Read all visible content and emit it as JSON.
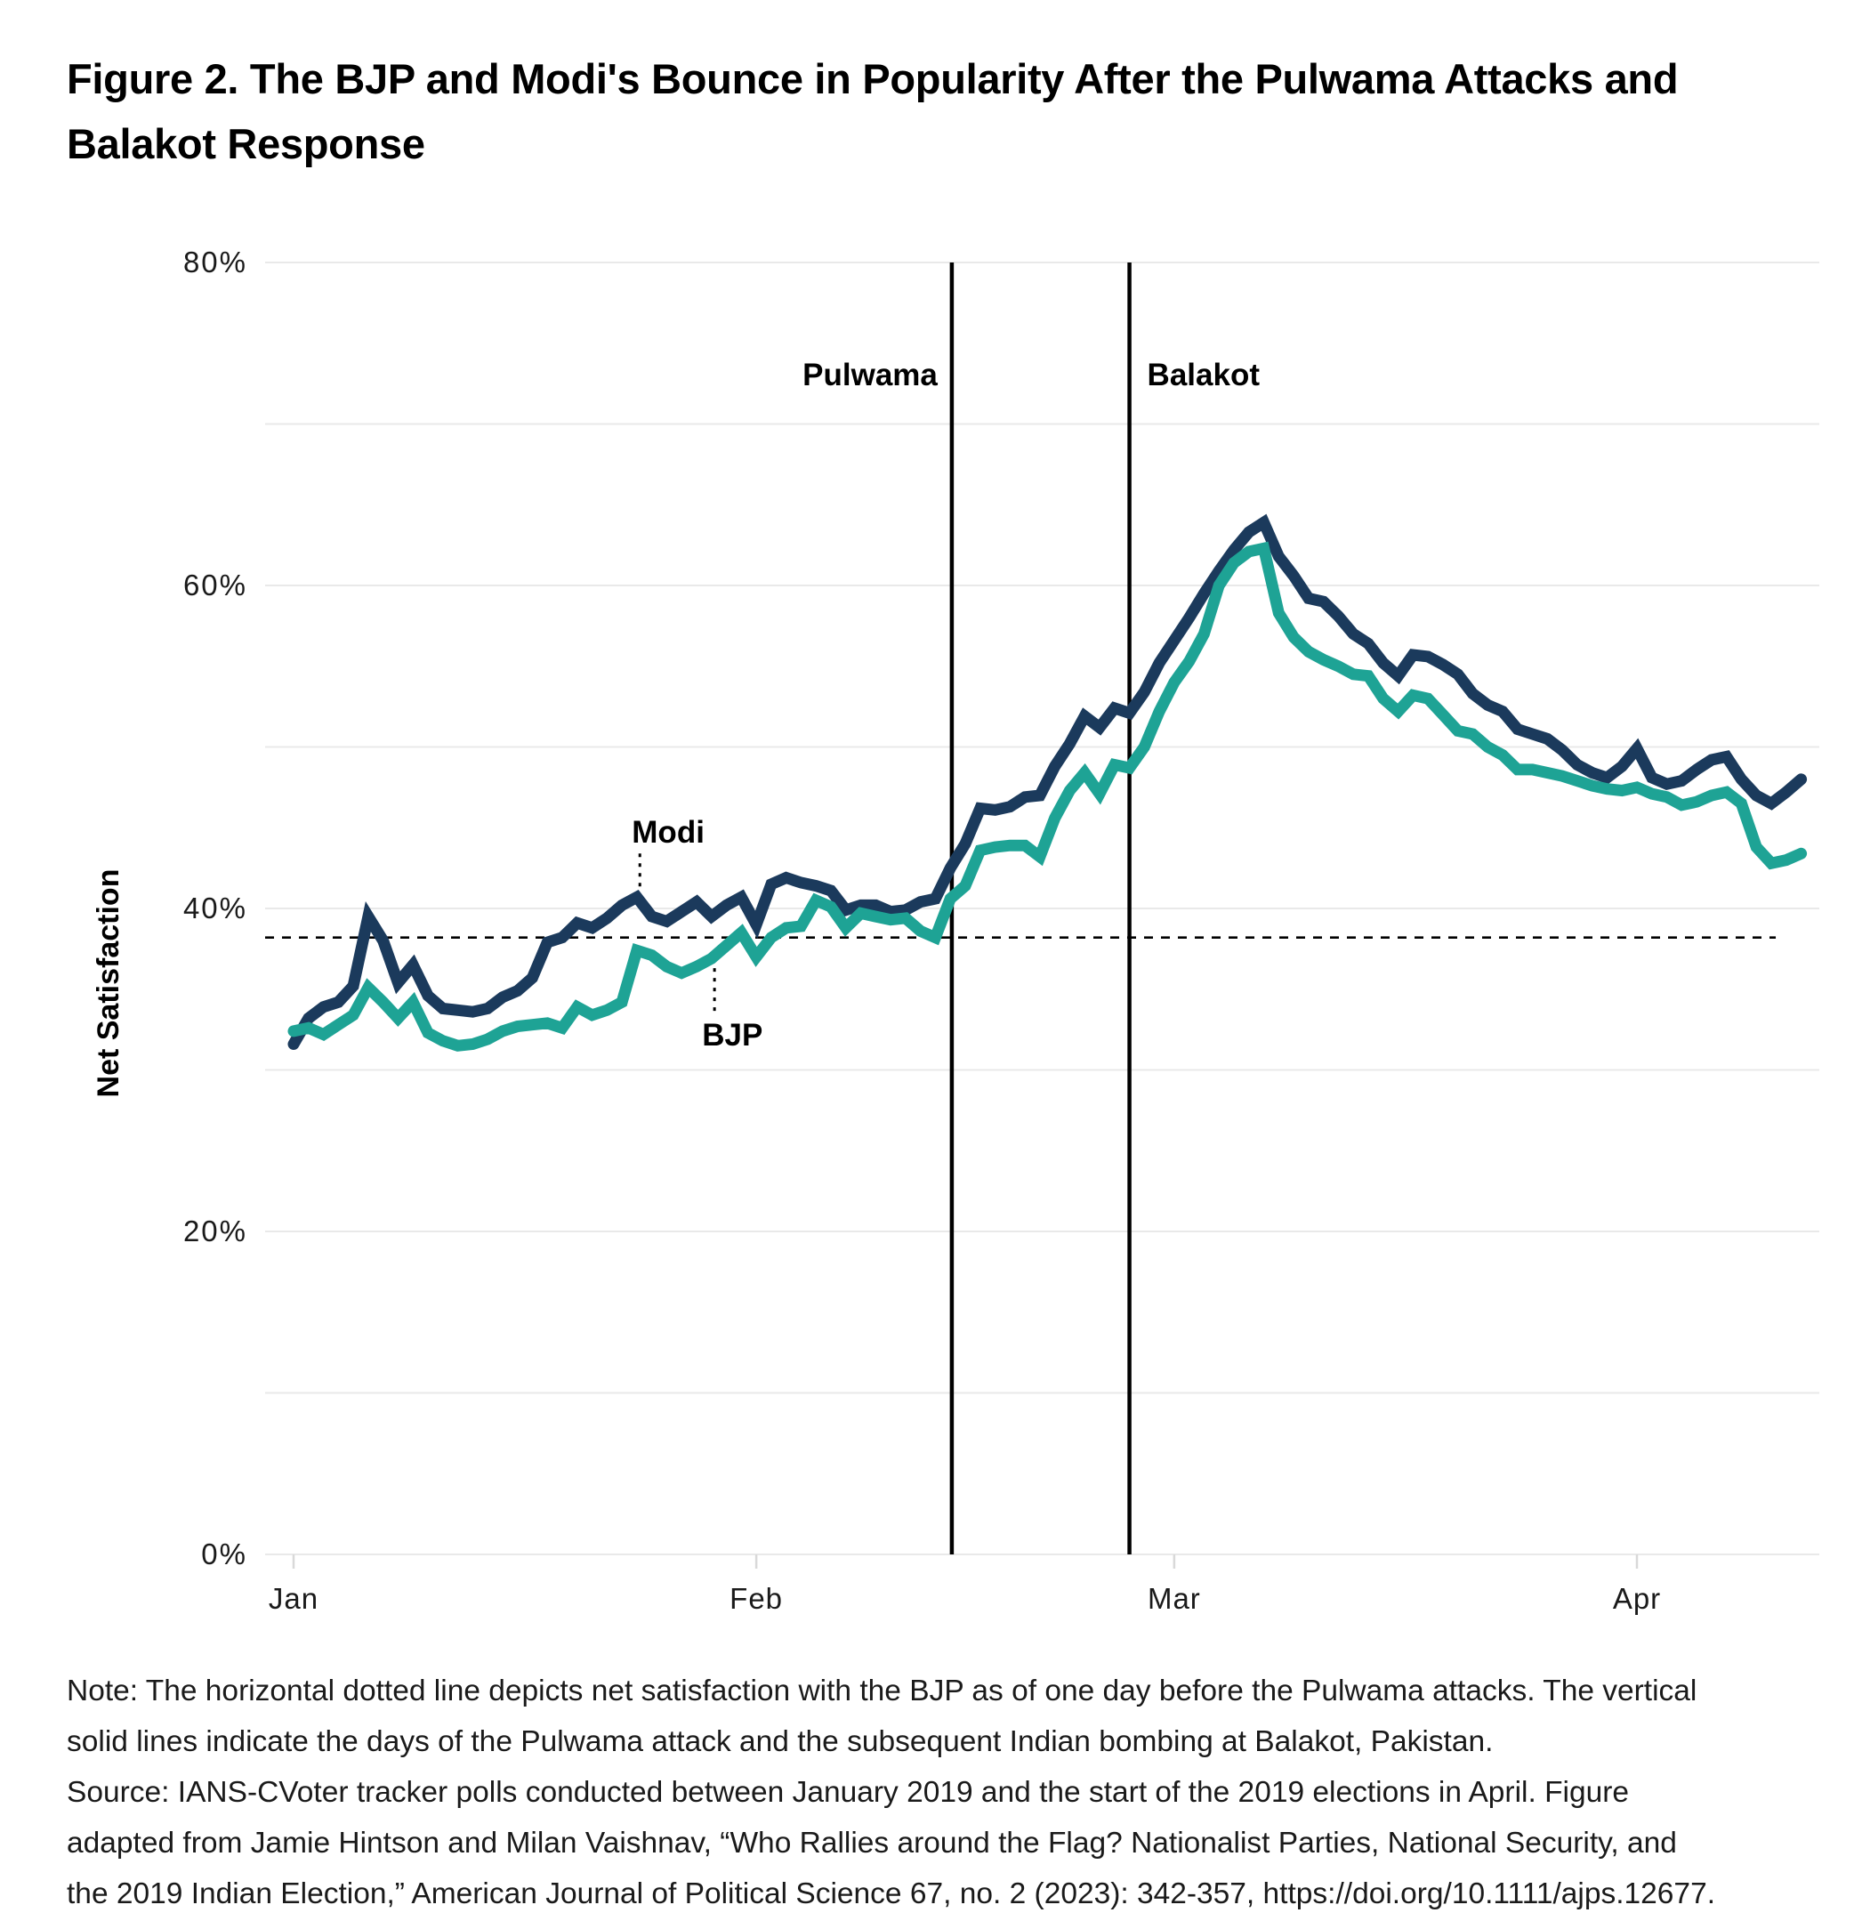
{
  "title": {
    "line1": "Figure 2. The BJP and Modi's Bounce in Popularity After the Pulwama Attacks and",
    "line2": "Balakot Response"
  },
  "note": {
    "lines": [
      "Note: The horizontal dotted line depicts net satisfaction with the BJP as of one day before the Pulwama attacks. The vertical",
      "solid lines indicate the days of the Pulwama attack and the subsequent Indian bombing at Balakot, Pakistan.",
      "Source: IANS-CVoter tracker polls conducted between January 2019 and the start of the 2019 elections in April. Figure",
      "adapted from Jamie Hintson and Milan Vaishnav, “Who Rallies around the Flag? Nationalist Parties, National Security, and",
      "the 2019 Indian Election,” American Journal of Political Science 67, no. 2 (2023): 342-357, https://doi.org/10.1111/ajps.12677."
    ]
  },
  "colors": {
    "modi_line": "#1b3a5c",
    "bjp_line": "#1ea395",
    "gridline": "#e9e9e9",
    "tick_mark": "#d9d9d9",
    "event_line": "#000000",
    "reference_line": "#000000",
    "text": "#1a1a1a"
  },
  "chart_data": {
    "type": "line",
    "title": "Figure 2. The BJP and Modi's Bounce in Popularity After the Pulwama Attacks and Balakot Response",
    "xlabel": "",
    "ylabel": "Net Satisfaction",
    "x_unit": "days since 2019-01-01",
    "x_range": [
      0,
      101
    ],
    "ylim": [
      0,
      80
    ],
    "grid": "horizontal, every 10%",
    "legend_position": "inline labels with dotted leaders",
    "y_axis": {
      "ticks": [
        {
          "label": "80%",
          "value": 80
        },
        {
          "label": "60%",
          "value": 60
        },
        {
          "label": "40%",
          "value": 40
        },
        {
          "label": "20%",
          "value": 20
        },
        {
          "label": "0%",
          "value": 0
        }
      ],
      "gridline_step": 10
    },
    "x_axis": {
      "ticks": [
        {
          "label": "Jan",
          "day": 0
        },
        {
          "label": "Feb",
          "day": 31
        },
        {
          "label": "Mar",
          "day": 59
        },
        {
          "label": "Apr",
          "day": 90
        }
      ]
    },
    "events": [
      {
        "label": "Pulwama",
        "day": 44.1,
        "date": "2019-02-14",
        "label_side": "left"
      },
      {
        "label": "Balakot",
        "day": 56.0,
        "date": "2019-02-26",
        "label_side": "right"
      }
    ],
    "reference_line": {
      "value": 38.2,
      "style": "dashed",
      "start_day": -1.9,
      "end_day": 99.3,
      "meaning": "Net satisfaction with the BJP one day before the Pulwama attacks"
    },
    "series_labels": [
      {
        "text": "Modi",
        "day": 25.1,
        "value": 44.7,
        "leader": {
          "day": 23.2,
          "from_value": 43.4,
          "to_value": 41.2
        }
      },
      {
        "text": "BJP",
        "day": 29.4,
        "value": 32.1,
        "leader": {
          "day": 28.2,
          "from_value": 36.3,
          "to_value": 33.5
        }
      }
    ],
    "series": [
      {
        "name": "Modi",
        "color": "#1b3a5c",
        "start_day": 0,
        "values": [
          31.6,
          33.2,
          33.9,
          34.2,
          35.2,
          39.5,
          38.0,
          35.4,
          36.5,
          34.6,
          33.8,
          33.7,
          33.6,
          33.8,
          34.5,
          34.9,
          35.7,
          37.9,
          38.2,
          39.1,
          38.8,
          39.4,
          40.2,
          40.7,
          39.5,
          39.2,
          39.8,
          40.4,
          39.5,
          40.2,
          40.7,
          39.0,
          41.5,
          41.9,
          41.6,
          41.4,
          41.1,
          39.9,
          40.2,
          40.2,
          39.8,
          39.9,
          40.4,
          40.6,
          42.5,
          44.0,
          46.2,
          46.1,
          46.3,
          46.9,
          47.0,
          48.8,
          50.2,
          51.9,
          51.2,
          52.4,
          52.1,
          53.4,
          55.2,
          56.6,
          58.0,
          59.5,
          60.9,
          62.2,
          63.3,
          63.9,
          61.8,
          60.6,
          59.2,
          59.0,
          58.1,
          57.0,
          56.4,
          55.2,
          54.4,
          55.7,
          55.6,
          55.1,
          54.5,
          53.3,
          52.6,
          52.2,
          51.1,
          50.8,
          50.5,
          49.8,
          48.9,
          48.4,
          48.1,
          48.8,
          49.9,
          48.1,
          47.7,
          47.9,
          48.6,
          49.2,
          49.4,
          48.0,
          47.0,
          46.5,
          47.2,
          48.0
        ]
      },
      {
        "name": "BJP",
        "color": "#1ea395",
        "start_day": 0,
        "values": [
          32.4,
          32.6,
          32.2,
          32.8,
          33.4,
          35.1,
          34.2,
          33.2,
          34.2,
          32.3,
          31.8,
          31.5,
          31.6,
          31.9,
          32.4,
          32.7,
          32.8,
          32.9,
          32.6,
          33.9,
          33.4,
          33.7,
          34.2,
          37.4,
          37.1,
          36.4,
          36.0,
          36.4,
          36.9,
          37.7,
          38.5,
          37.0,
          38.2,
          38.8,
          38.9,
          40.5,
          40.1,
          38.8,
          39.7,
          39.5,
          39.3,
          39.4,
          38.6,
          38.2,
          40.6,
          41.4,
          43.6,
          43.8,
          43.9,
          43.9,
          43.2,
          45.6,
          47.3,
          48.4,
          47.1,
          48.9,
          48.7,
          50.0,
          52.2,
          54.0,
          55.3,
          57.0,
          60.0,
          61.4,
          62.1,
          62.3,
          58.3,
          56.8,
          55.9,
          55.4,
          55.0,
          54.5,
          54.4,
          53.0,
          52.2,
          53.2,
          53.0,
          52.0,
          51.0,
          50.8,
          50.0,
          49.5,
          48.6,
          48.6,
          48.4,
          48.2,
          47.9,
          47.6,
          47.4,
          47.3,
          47.5,
          47.1,
          46.9,
          46.4,
          46.6,
          47.0,
          47.2,
          46.5,
          43.8,
          42.8,
          43.0,
          43.4
        ]
      }
    ]
  }
}
